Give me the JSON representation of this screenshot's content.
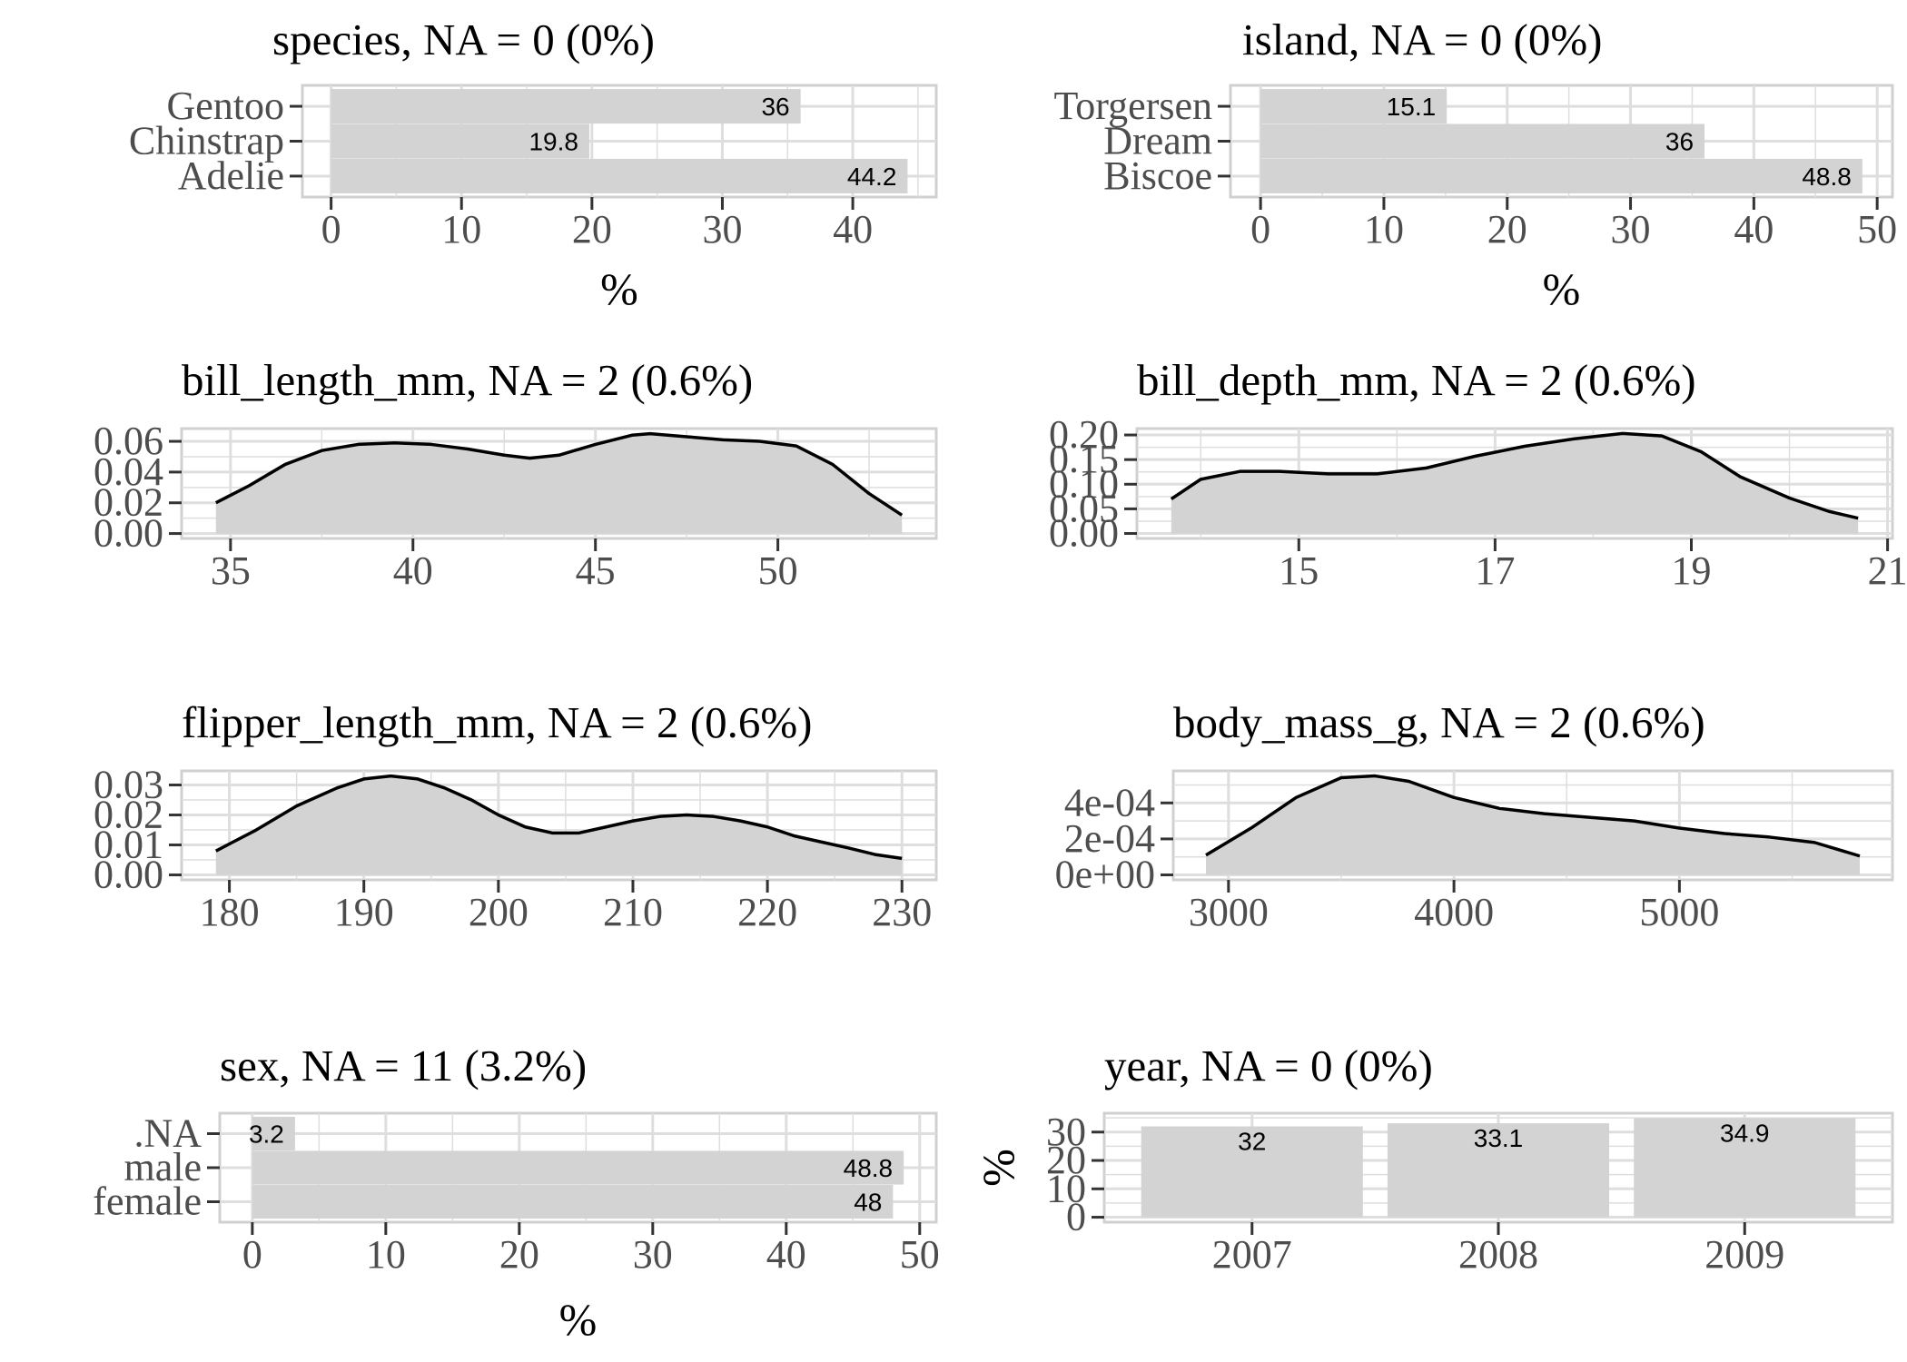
{
  "chart_data": [
    {
      "type": "bar",
      "orientation": "horizontal",
      "title": "species, NA = 0 (0%)",
      "xlabel": "%",
      "ylabel": "",
      "categories": [
        "Adelie",
        "Chinstrap",
        "Gentoo"
      ],
      "values": [
        44.2,
        19.8,
        36
      ],
      "data_labels": [
        "44.2",
        "19.8",
        "36"
      ],
      "xlim": [
        -2.2,
        46.4
      ],
      "xticks": [
        0,
        10,
        20,
        30,
        40
      ],
      "xtick_labels": [
        "0",
        "10",
        "20",
        "30",
        "40"
      ],
      "grid": true
    },
    {
      "type": "bar",
      "orientation": "horizontal",
      "title": "island, NA = 0 (0%)",
      "xlabel": "%",
      "ylabel": "",
      "categories": [
        "Biscoe",
        "Dream",
        "Torgersen"
      ],
      "values": [
        48.8,
        36,
        15.1
      ],
      "data_labels": [
        "48.8",
        "36",
        "15.1"
      ],
      "xlim": [
        -2.44,
        51.24
      ],
      "xticks": [
        0,
        10,
        20,
        30,
        40,
        50
      ],
      "xtick_labels": [
        "0",
        "10",
        "20",
        "30",
        "40",
        "50"
      ],
      "grid": true
    },
    {
      "type": "area",
      "title": "bill_length_mm, NA = 2 (0.6%)",
      "xlabel": "",
      "ylabel": "",
      "x": [
        34.6,
        35.5,
        36.5,
        37.5,
        38.5,
        39.5,
        40.5,
        41.5,
        42.5,
        43.2,
        44,
        45,
        46,
        46.5,
        47.5,
        48.5,
        49.5,
        50.5,
        51.5,
        52.5,
        53.4
      ],
      "y": [
        0.02,
        0.031,
        0.045,
        0.054,
        0.058,
        0.059,
        0.058,
        0.055,
        0.051,
        0.049,
        0.051,
        0.058,
        0.064,
        0.065,
        0.063,
        0.061,
        0.06,
        0.057,
        0.045,
        0.026,
        0.012
      ],
      "xlim": [
        33.66,
        54.34
      ],
      "ylim": [
        -0.0032,
        0.0683
      ],
      "xticks": [
        35,
        40,
        45,
        50
      ],
      "xtick_labels": [
        "35",
        "40",
        "45",
        "50"
      ],
      "yticks": [
        0,
        0.02,
        0.04,
        0.06
      ],
      "ytick_labels": [
        "0.00",
        "0.02",
        "0.04",
        "0.06"
      ],
      "grid": true
    },
    {
      "type": "area",
      "title": "bill_depth_mm, NA = 2 (0.6%)",
      "xlabel": "",
      "ylabel": "",
      "x": [
        13.7,
        14.0,
        14.4,
        14.8,
        15.3,
        15.8,
        16.3,
        16.8,
        17.3,
        17.8,
        18.3,
        18.7,
        19.1,
        19.5,
        20.0,
        20.4,
        20.7
      ],
      "y": [
        0.07,
        0.11,
        0.126,
        0.126,
        0.121,
        0.121,
        0.133,
        0.157,
        0.177,
        0.192,
        0.203,
        0.198,
        0.166,
        0.115,
        0.072,
        0.045,
        0.031
      ],
      "xlim": [
        13.35,
        21.05
      ],
      "ylim": [
        -0.0101,
        0.213
      ],
      "xticks": [
        15,
        17,
        19,
        21
      ],
      "xtick_labels": [
        "15",
        "17",
        "19",
        "21"
      ],
      "yticks": [
        0,
        0.05,
        0.1,
        0.15,
        0.2
      ],
      "ytick_labels": [
        "0.00",
        "0.05",
        "0.10",
        "0.15",
        "0.20"
      ],
      "grid": true
    },
    {
      "type": "area",
      "title": "flipper_length_mm, NA = 2 (0.6%)",
      "xlabel": "",
      "ylabel": "",
      "x": [
        179,
        182,
        185,
        188,
        190,
        192,
        194,
        196,
        198,
        200,
        202,
        204,
        206,
        208,
        210,
        212,
        214,
        216,
        218,
        220,
        222,
        224,
        226,
        228,
        230
      ],
      "y": [
        0.008,
        0.015,
        0.023,
        0.029,
        0.032,
        0.033,
        0.032,
        0.029,
        0.025,
        0.02,
        0.016,
        0.014,
        0.014,
        0.016,
        0.018,
        0.0195,
        0.02,
        0.0195,
        0.018,
        0.016,
        0.013,
        0.011,
        0.009,
        0.0068,
        0.0055
      ],
      "xlim": [
        176.45,
        232.55
      ],
      "ylim": [
        -0.00165,
        0.0347
      ],
      "xticks": [
        180,
        190,
        200,
        210,
        220,
        230
      ],
      "xtick_labels": [
        "180",
        "190",
        "200",
        "210",
        "220",
        "230"
      ],
      "yticks": [
        0,
        0.01,
        0.02,
        0.03
      ],
      "ytick_labels": [
        "0.00",
        "0.01",
        "0.02",
        "0.03"
      ],
      "grid": true
    },
    {
      "type": "area",
      "title": "body_mass_g, NA = 2 (0.6%)",
      "xlabel": "",
      "ylabel": "",
      "x": [
        2900,
        3100,
        3300,
        3500,
        3650,
        3800,
        4000,
        4200,
        4400,
        4600,
        4800,
        5000,
        5200,
        5400,
        5600,
        5800
      ],
      "y": [
        0.00011,
        0.00026,
        0.00043,
        0.00054,
        0.00055,
        0.00052,
        0.00043,
        0.00037,
        0.00034,
        0.00032,
        0.0003,
        0.00026,
        0.00023,
        0.00021,
        0.00018,
        0.000105
      ],
      "xlim": [
        2755,
        5945
      ],
      "ylim": [
        -2.75e-05,
        0.000578
      ],
      "xticks": [
        3000,
        4000,
        5000
      ],
      "xtick_labels": [
        "3000",
        "4000",
        "5000"
      ],
      "yticks": [
        0,
        0.0002,
        0.0004
      ],
      "ytick_labels": [
        "0e+00",
        "2e-04",
        "4e-04"
      ],
      "grid": true
    },
    {
      "type": "bar",
      "orientation": "horizontal",
      "title": "sex, NA = 11 (3.2%)",
      "xlabel": "%",
      "ylabel": "",
      "categories": [
        "female",
        "male",
        ".NA"
      ],
      "values": [
        48,
        48.8,
        3.2
      ],
      "data_labels": [
        "48",
        "48.8",
        "3.2"
      ],
      "xlim": [
        -2.44,
        51.24
      ],
      "xticks": [
        0,
        10,
        20,
        30,
        40,
        50
      ],
      "xtick_labels": [
        "0",
        "10",
        "20",
        "30",
        "40",
        "50"
      ],
      "grid": true
    },
    {
      "type": "bar",
      "orientation": "vertical",
      "title": "year, NA = 0 (0%)",
      "xlabel": "",
      "ylabel": "%",
      "categories": [
        "2007",
        "2008",
        "2009"
      ],
      "values": [
        32,
        33.1,
        34.9
      ],
      "data_labels": [
        "32",
        "33.1",
        "34.9"
      ],
      "ylim": [
        -1.745,
        36.645
      ],
      "yticks": [
        0,
        10,
        20,
        30
      ],
      "ytick_labels": [
        "0",
        "10",
        "20",
        "30"
      ],
      "grid": true
    }
  ],
  "colors": {
    "bar_fill": "#d3d3d3",
    "density_fill": "#d3d3d3",
    "density_line": "#000000",
    "grid": "#dedede",
    "panel_border": "#d0d0d0",
    "tick_text": "#4d4d4d"
  }
}
